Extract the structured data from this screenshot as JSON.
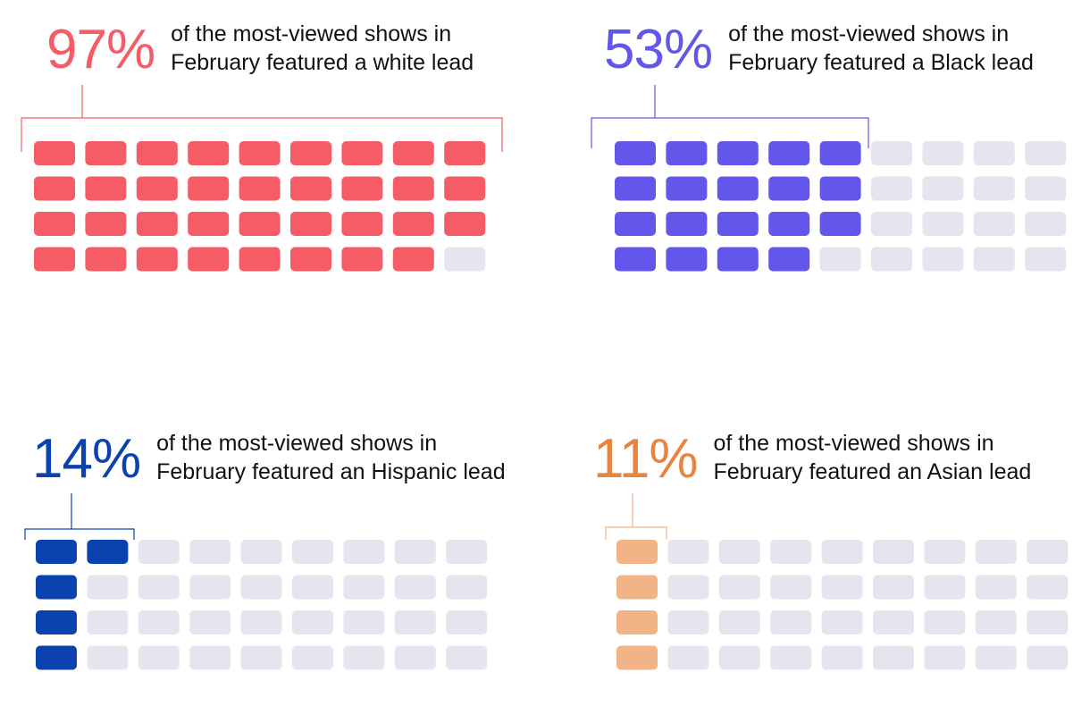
{
  "chart_data": [
    {
      "type": "waffle",
      "value_label": "97%",
      "value": 97,
      "text_line1": "of the most-viewed shows in",
      "text_line2": "February featured a white lead",
      "filled_cells": 35,
      "total_cells": 36,
      "color": "#f55c66"
    },
    {
      "type": "waffle",
      "value_label": "53%",
      "value": 53,
      "text_line1": "of the most-viewed shows in",
      "text_line2": "February featured a Black lead",
      "filled_cells": 19,
      "total_cells": 36,
      "color": "#6257ea"
    },
    {
      "type": "waffle",
      "value_label": "14%",
      "value": 14,
      "text_line1": "of the most-viewed shows in",
      "text_line2": "February featured an Hispanic lead",
      "filled_cells": 5,
      "total_cells": 36,
      "color": "#0a43b0"
    },
    {
      "type": "waffle",
      "value_label": "11%",
      "value": 11,
      "text_line1": "of the most-viewed shows in",
      "text_line2": "February featured an Asian lead",
      "filled_cells": 4,
      "total_cells": 36,
      "color": "#f2b386"
    }
  ],
  "empty_color": "#e5e5ef"
}
